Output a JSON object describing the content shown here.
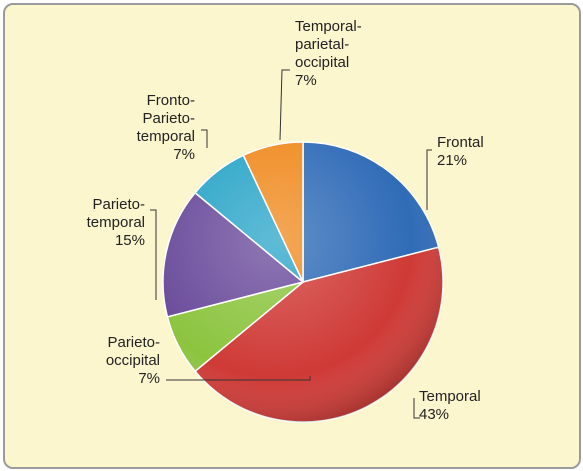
{
  "chart_data": {
    "type": "pie",
    "categories": [
      "Frontal",
      "Temporal",
      "Parieto-occipital",
      "Parieto-temporal",
      "Fronto-Parieto-temporal",
      "Temporal-parietal-occipital"
    ],
    "values": [
      21,
      43,
      7,
      15,
      7,
      7
    ],
    "value_labels": [
      "21%",
      "43%",
      "7%",
      "15%",
      "7%",
      "7%"
    ],
    "colors": [
      "#2f6bb7",
      "#cf3a36",
      "#8cc43f",
      "#6a4b9b",
      "#2aa5c8",
      "#f08a1f"
    ]
  }
}
